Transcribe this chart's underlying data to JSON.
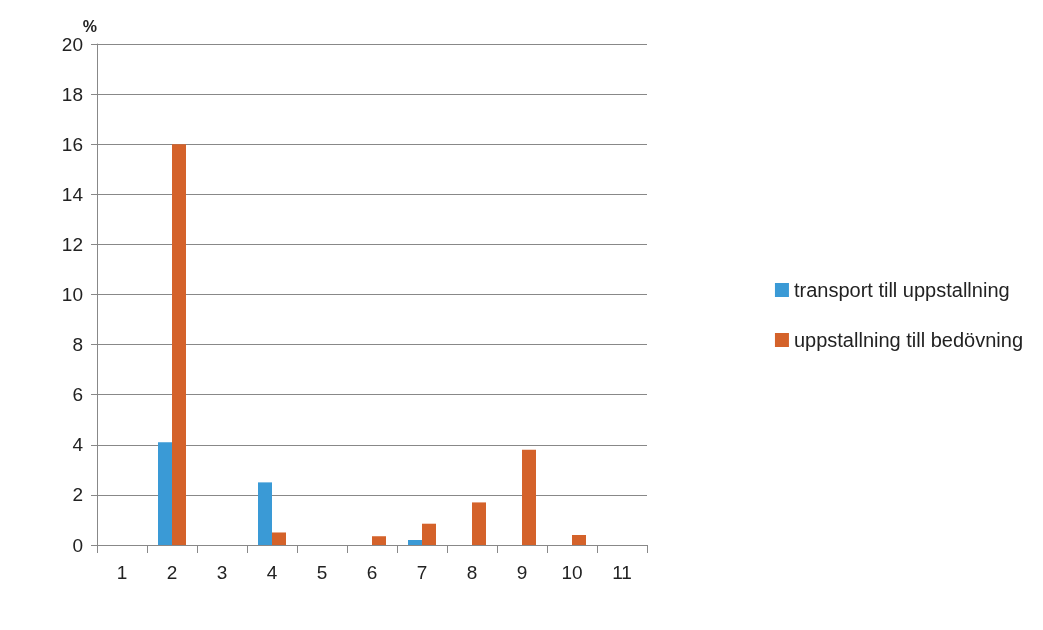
{
  "chart_data": {
    "type": "bar",
    "ylabel": "%",
    "categories": [
      "1",
      "2",
      "3",
      "4",
      "5",
      "6",
      "7",
      "8",
      "9",
      "10",
      "11"
    ],
    "series": [
      {
        "name": "transport till uppstallning",
        "color": "#3a9ad6",
        "values": [
          0,
          4.1,
          0,
          2.5,
          0,
          0,
          0.2,
          0,
          0,
          0,
          0
        ]
      },
      {
        "name": "uppstallning till bedövning",
        "color": "#d4622a",
        "values": [
          0,
          16,
          0,
          0.5,
          0,
          0.35,
          0.85,
          1.7,
          3.8,
          0.4,
          0
        ]
      }
    ],
    "ylim": [
      0,
      20
    ],
    "yticks": [
      0,
      2,
      4,
      6,
      8,
      10,
      12,
      14,
      16,
      18,
      20
    ],
    "grid": "y",
    "legend": "right"
  }
}
